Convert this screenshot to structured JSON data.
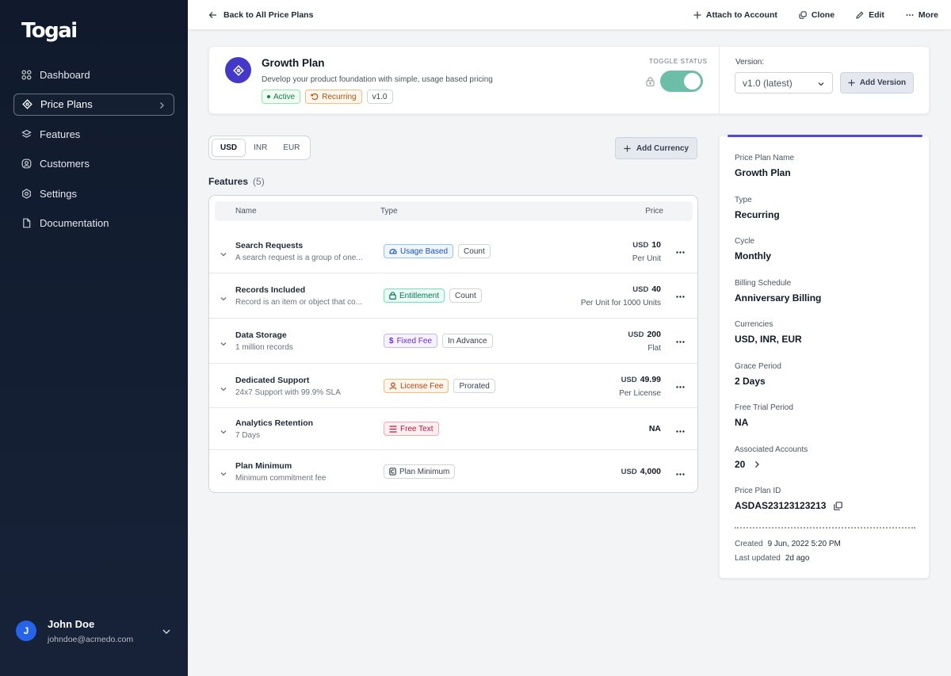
{
  "sidebar": {
    "logo": "Togai",
    "items": [
      {
        "label": "Dashboard",
        "icon": "dashboard-icon"
      },
      {
        "label": "Price Plans",
        "icon": "tag-icon"
      },
      {
        "label": "Features",
        "icon": "layers-icon"
      },
      {
        "label": "Customers",
        "icon": "user-circle-icon"
      },
      {
        "label": "Settings",
        "icon": "gear-icon"
      },
      {
        "label": "Documentation",
        "icon": "document-icon"
      }
    ],
    "user": {
      "initial": "J",
      "name": "John Doe",
      "email": "johndoe@acmedo.com"
    }
  },
  "topbar": {
    "back_label": "Back to All Price Plans",
    "attach_label": "Attach to Account",
    "clone_label": "Clone",
    "edit_label": "Edit",
    "more_label": "More"
  },
  "plan": {
    "title": "Growth Plan",
    "description": "Develop your product foundation with simple, usage based pricing",
    "status_tag": "Active",
    "type_tag": "Recurring",
    "version_tag": "v1.0",
    "toggle_label": "TOGGLE STATUS",
    "version_label": "Version:",
    "version_selected": "v1.0 (latest)",
    "add_version_label": "Add Version"
  },
  "currencies": {
    "tabs": [
      "USD",
      "INR",
      "EUR"
    ],
    "active": "USD",
    "add_label": "Add Currency"
  },
  "features": {
    "title": "Features",
    "count": "(5)",
    "columns": {
      "name": "Name",
      "type": "Type",
      "price": "Price"
    },
    "rows": [
      {
        "name": "Search Requests",
        "desc": "A search request is a group of one...",
        "type": "Usage Based",
        "type_style": "usage",
        "sub": "Count",
        "currency": "USD",
        "price": "10",
        "unit": "Per Unit"
      },
      {
        "name": "Records Included",
        "desc": "Record is an item or object that co...",
        "type": "Entitlement",
        "type_style": "entitle",
        "sub": "Count",
        "currency": "USD",
        "price": "40",
        "unit": "Per Unit for 1000 Units"
      },
      {
        "name": "Data Storage",
        "desc": "1 million records",
        "type": "Fixed Fee",
        "type_style": "fixed",
        "sub": "In Advance",
        "currency": "USD",
        "price": "200",
        "unit": "Flat"
      },
      {
        "name": "Dedicated Support",
        "desc": "24x7 Support with 99.9% SLA",
        "type": "License Fee",
        "type_style": "license",
        "sub": "Prorated",
        "currency": "USD",
        "price": "49.99",
        "unit": "Per License"
      },
      {
        "name": "Analytics Retention",
        "desc": "7 Days",
        "type": "Free Text",
        "type_style": "free",
        "sub": "",
        "currency": "",
        "price": "NA",
        "unit": ""
      },
      {
        "name": "Plan Minimum",
        "desc": "Minimum commitment fee",
        "type": "Plan Minimum",
        "type_style": "minimum",
        "sub": "",
        "currency": "USD",
        "price": "4,000",
        "unit": ""
      }
    ]
  },
  "details": {
    "fields": [
      {
        "label": "Price Plan Name",
        "value": "Growth Plan"
      },
      {
        "label": "Type",
        "value": "Recurring"
      },
      {
        "label": "Cycle",
        "value": "Monthly"
      },
      {
        "label": "Billing Schedule",
        "value": "Anniversary Billing"
      },
      {
        "label": "Currencies",
        "value": "USD, INR, EUR"
      },
      {
        "label": "Grace Period",
        "value": "2 Days"
      },
      {
        "label": "Free Trial Period",
        "value": "NA"
      },
      {
        "label": "Associated Accounts",
        "value": "20"
      },
      {
        "label": "Price Plan ID",
        "value": "ASDAS23123123213"
      }
    ],
    "created_label": "Created",
    "created_value": "9 Jun, 2022 5:20 PM",
    "updated_label": "Last updated",
    "updated_value": "2d ago"
  },
  "colors": {
    "accent": "#4f46e5",
    "sidebar_bg": "#101a2c",
    "toggle_on": "#6dbea8"
  }
}
